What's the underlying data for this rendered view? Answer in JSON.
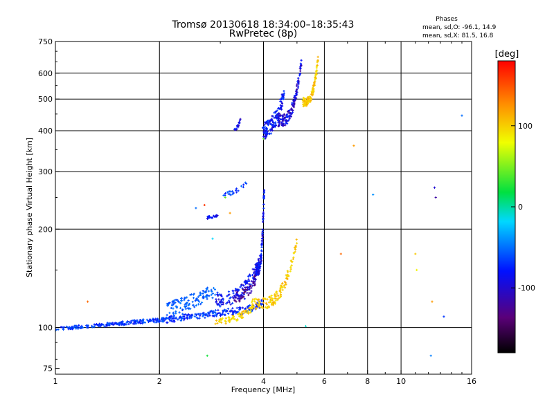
{
  "chart_data": {
    "type": "scatter",
    "title": "Tromsø 20130618 18:34:00–18:35:43",
    "subtitle": "RwPretec (8p)",
    "xlabel": "Frequency [MHz]",
    "ylabel": "Stationary phase Virtual Height [km]",
    "x_scale": "log2",
    "y_scale": "log",
    "xlim": [
      1,
      16
    ],
    "ylim": [
      72,
      750
    ],
    "x_ticks": [
      1,
      2,
      4,
      6,
      8,
      10,
      16
    ],
    "x_tick_labels": [
      "1",
      "2",
      "4",
      "6",
      "8",
      "10",
      "16"
    ],
    "y_ticks": [
      75,
      100,
      200,
      300,
      400,
      500,
      600,
      750
    ],
    "y_tick_labels": [
      "75",
      "100",
      "200",
      "300",
      "400",
      "500",
      "600",
      "750"
    ],
    "grid": true,
    "phase_box": {
      "title": "Phases",
      "line1": "mean, sd,O: -96.1, 14.9",
      "line2": "mean, sd,X: 81.5, 16.8"
    },
    "colorbar": {
      "label": "[deg]",
      "range": [
        -180,
        180
      ],
      "ticks": [
        -100,
        0,
        100
      ],
      "tick_labels": [
        "-100",
        "0",
        "100"
      ]
    },
    "traces": [
      {
        "x0": 1.0,
        "x1": 1.55,
        "y0": 99,
        "y1": 103,
        "curve": 0.0,
        "phase": -100,
        "count": 110,
        "spread": 1.2
      },
      {
        "x0": 1.55,
        "x1": 2.1,
        "y0": 103,
        "y1": 106,
        "curve": 0.0,
        "phase": -100,
        "count": 100,
        "spread": 1.5
      },
      {
        "x0": 2.1,
        "x1": 3.2,
        "y0": 106,
        "y1": 112,
        "curve": 0.0,
        "phase": -100,
        "count": 120,
        "spread": 2.5
      },
      {
        "x0": 3.2,
        "x1": 4.0,
        "y0": 112,
        "y1": 120,
        "curve": 1.5,
        "phase": -105,
        "count": 70,
        "spread": 3.0
      },
      {
        "x0": 2.1,
        "x1": 2.9,
        "y0": 115,
        "y1": 130,
        "curve": 0.5,
        "phase": -85,
        "count": 120,
        "spread": 6.0
      },
      {
        "x0": 2.9,
        "x1": 3.95,
        "y0": 122,
        "y1": 165,
        "curve": 2.0,
        "phase": -110,
        "count": 130,
        "spread": 6.0
      },
      {
        "x0": 3.3,
        "x1": 3.95,
        "y0": 125,
        "y1": 160,
        "curve": 2.0,
        "phase": -130,
        "count": 70,
        "spread": 5.0
      },
      {
        "x0": 3.8,
        "x1": 4.02,
        "y0": 150,
        "y1": 270,
        "curve": 3.5,
        "phase": -112,
        "count": 120,
        "spread": 6.0
      },
      {
        "x0": 2.9,
        "x1": 3.75,
        "y0": 104,
        "y1": 115,
        "curve": 1.0,
        "phase": 95,
        "count": 70,
        "spread": 2.5
      },
      {
        "x0": 3.7,
        "x1": 5.0,
        "y0": 118,
        "y1": 185,
        "curve": 3.0,
        "phase": 100,
        "count": 130,
        "spread": 5.0
      },
      {
        "x0": 3.98,
        "x1": 4.6,
        "y0": 400,
        "y1": 520,
        "curve": 1.2,
        "phase": -110,
        "count": 140,
        "spread": 25
      },
      {
        "x0": 4.4,
        "x1": 5.15,
        "y0": 430,
        "y1": 650,
        "curve": 2.5,
        "phase": -118,
        "count": 140,
        "spread": 18
      },
      {
        "x0": 5.2,
        "x1": 5.75,
        "y0": 490,
        "y1": 660,
        "curve": 2.5,
        "phase": 100,
        "count": 110,
        "spread": 15
      },
      {
        "x0": 3.3,
        "x1": 3.45,
        "y0": 405,
        "y1": 440,
        "curve": 1.0,
        "phase": -115,
        "count": 18,
        "spread": 5.0
      },
      {
        "x0": 2.75,
        "x1": 2.95,
        "y0": 217,
        "y1": 220,
        "curve": 0.0,
        "phase": -110,
        "count": 22,
        "spread": 2.0
      },
      {
        "x0": 3.05,
        "x1": 3.6,
        "y0": 255,
        "y1": 280,
        "curve": 1.0,
        "phase": -95,
        "count": 22,
        "spread": 4.0
      }
    ],
    "isolated_points": [
      {
        "x": 1.24,
        "y": 120,
        "phase": 140
      },
      {
        "x": 2.55,
        "y": 232,
        "phase": -80
      },
      {
        "x": 2.7,
        "y": 237,
        "phase": 160
      },
      {
        "x": 2.75,
        "y": 82,
        "phase": 20
      },
      {
        "x": 2.85,
        "y": 187,
        "phase": -20
      },
      {
        "x": 3.2,
        "y": 224,
        "phase": 120
      },
      {
        "x": 3.1,
        "y": 250,
        "phase": 40
      },
      {
        "x": 4.0,
        "y": 378,
        "phase": 40
      },
      {
        "x": 5.3,
        "y": 101,
        "phase": -10
      },
      {
        "x": 6.7,
        "y": 168,
        "phase": 140
      },
      {
        "x": 7.3,
        "y": 360,
        "phase": 120
      },
      {
        "x": 8.3,
        "y": 255,
        "phase": -60
      },
      {
        "x": 11.0,
        "y": 168,
        "phase": 100
      },
      {
        "x": 11.1,
        "y": 150,
        "phase": 80
      },
      {
        "x": 12.5,
        "y": 268,
        "phase": -120
      },
      {
        "x": 12.6,
        "y": 250,
        "phase": -130
      },
      {
        "x": 12.2,
        "y": 82,
        "phase": -70
      },
      {
        "x": 12.3,
        "y": 120,
        "phase": 120
      },
      {
        "x": 13.3,
        "y": 108,
        "phase": -100
      },
      {
        "x": 15.0,
        "y": 445,
        "phase": -80
      }
    ]
  }
}
